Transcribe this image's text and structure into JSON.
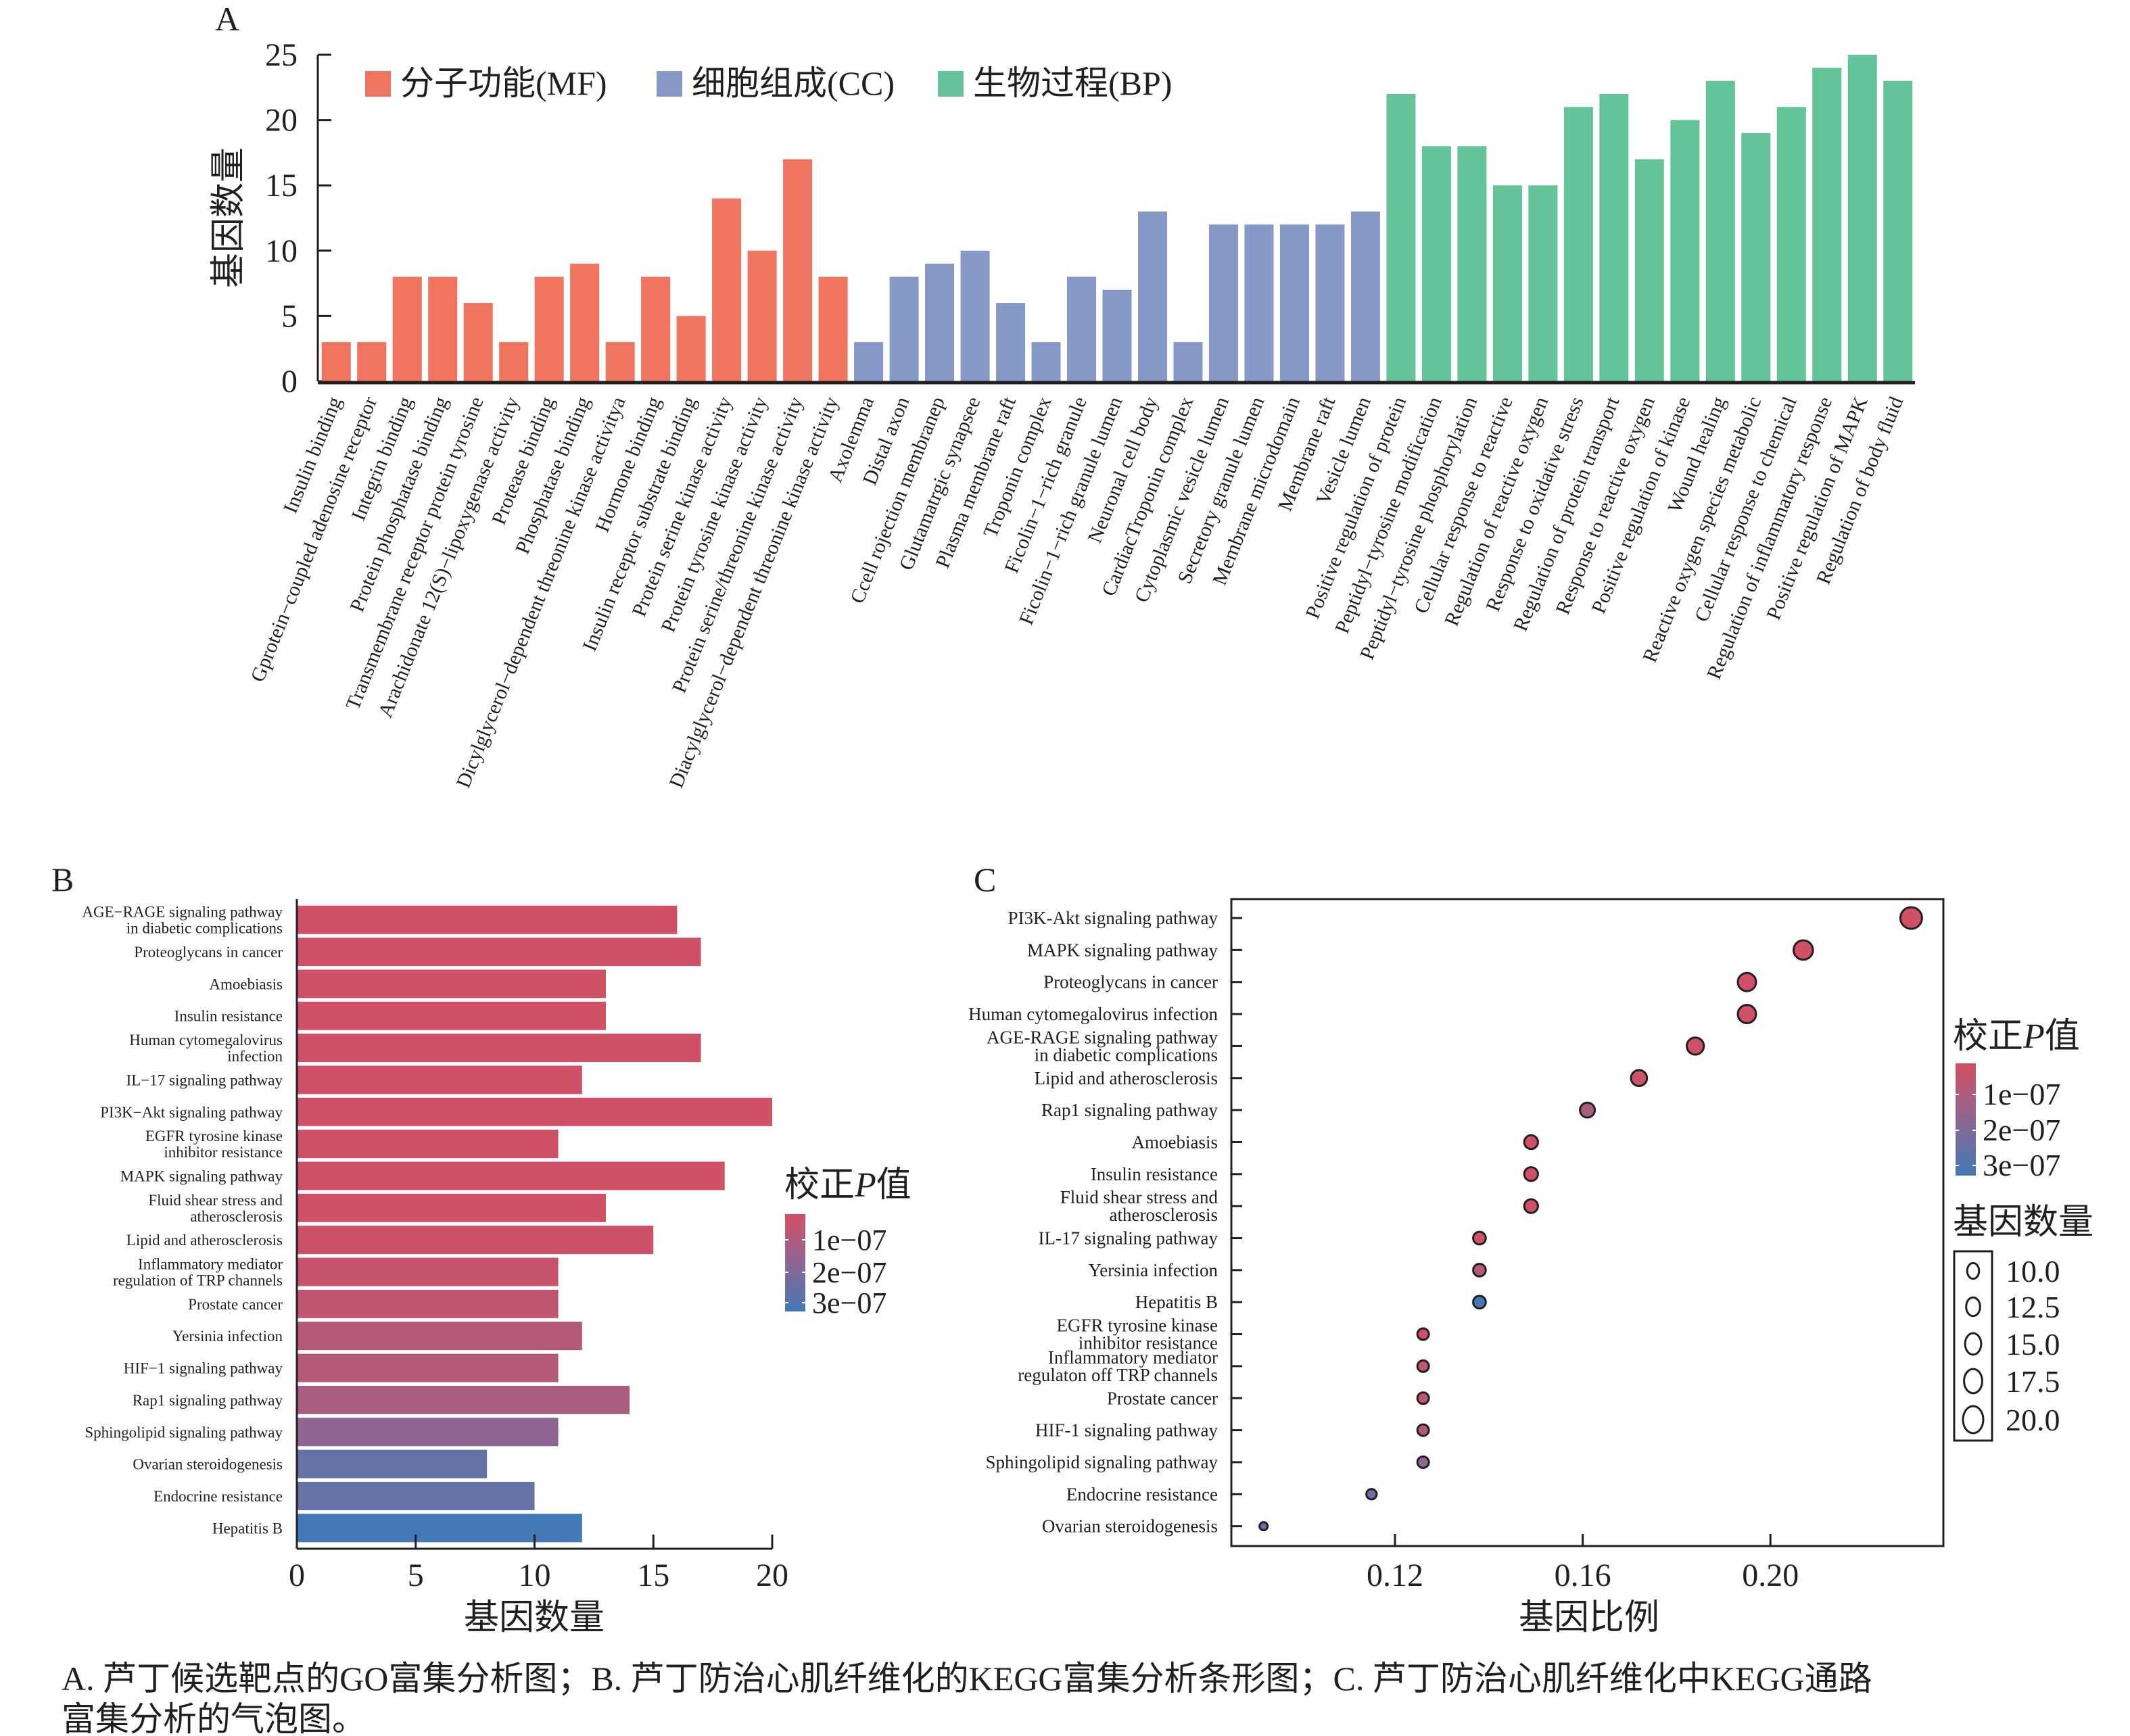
{
  "caption": {
    "line1": "A. 芦丁候选靶点的GO富集分析图；B. 芦丁防治心肌纤维化的KEGG富集分析条形图；C. 芦丁防治心肌纤维化中KEGG通路",
    "line2": "富集分析的气泡图。"
  },
  "chart_data": [
    {
      "panel": "A",
      "type": "bar",
      "ylabel": "基因数量",
      "ylim": [
        0,
        25
      ],
      "yticks": [
        0,
        5,
        10,
        15,
        20,
        25
      ],
      "legend_position": "top-left",
      "series": [
        {
          "name": "分子功能(MF)",
          "color": "#f07560",
          "categories": [
            "Insulin binding",
            "Gprotein−coupled adenosine receptor",
            "Integrin binding",
            "Protein phosphatase binding",
            "Transmembrane receptor protein tyrosine",
            "Arachidonate 12(S)−lipoxygenase activity",
            "Protease binding",
            "Phosphatase binding",
            "Dicylglycerol−dependent threonine kinase activitya",
            "Hormone binding",
            "Insulin receptor substrate binding",
            "Protein serine kinase activity",
            "Protein tyrosine kinase activity",
            "Protein serine/threonine kinase activity",
            "Diacylglycerol−dependent threonine kinase activity"
          ],
          "values": [
            3,
            3,
            8,
            8,
            6,
            3,
            8,
            9,
            3,
            8,
            5,
            14,
            10,
            17,
            8
          ]
        },
        {
          "name": "细胞组成(CC)",
          "color": "#8598c6",
          "categories": [
            "Axolemma",
            "Distal axon",
            "Ccell rojection membranep",
            "Glutamatrgic synapsee",
            "Plasma membrane raft",
            "Troponin complex",
            "Ficolin−1−rich granule",
            "Ficolin−1−rich granule lumen",
            "Neuronal cell body",
            "CardiacTroponin complex",
            "Cytoplasmic vesicle lumen",
            "Secretory granule lumen",
            "Membrane microdomain",
            "Membrane raft",
            "Vesicle lumen"
          ],
          "values": [
            3,
            8,
            9,
            10,
            6,
            3,
            8,
            7,
            13,
            3,
            12,
            12,
            12,
            12,
            13
          ]
        },
        {
          "name": "生物过程(BP)",
          "color": "#65c39a",
          "categories": [
            "Positive regulation of protein",
            "Peptidyl−tyrosine modification",
            "Peptidyl−tyrosine phosphorylation",
            "Cellular response to reactive",
            "Regulation of reactive oxygen",
            "Response to oxidative stress",
            "Regulation of protein transport",
            "Response to reactive oxygen",
            "Positive regulation of kinase",
            "Wound healing",
            "Reactive oxygen species metabolic",
            "Cellular response to chemical",
            "Regulation of inflammatory response",
            "Positive regulation of MAPK",
            "Regulation of body fluid"
          ],
          "values": [
            22,
            18,
            18,
            15,
            15,
            21,
            22,
            17,
            20,
            23,
            19,
            21,
            24,
            25,
            23
          ]
        }
      ]
    },
    {
      "panel": "B",
      "type": "bar",
      "orientation": "horizontal",
      "xlabel": "基因数量",
      "xlim": [
        0,
        20
      ],
      "xticks": [
        0,
        5,
        10,
        15,
        20
      ],
      "color_legend_title": "校正P值",
      "color_legend_ticks": [
        "1e−07",
        "2e−07",
        "3e−07"
      ],
      "color_scale": [
        "#d44f64",
        "#8d6792",
        "#4479b7"
      ],
      "categories": [
        [
          "AGE−RAGE signaling pathway",
          "in diabetic complications"
        ],
        [
          "Proteoglycans in cancer"
        ],
        [
          "Amoebiasis"
        ],
        [
          "Insulin resistance"
        ],
        [
          "Human cytomegalovirus",
          "infection"
        ],
        [
          "IL−17 signaling pathway"
        ],
        [
          "PI3K−Akt signaling pathway"
        ],
        [
          "EGFR tyrosine kinase",
          "inhibitor resistance"
        ],
        [
          "MAPK signaling pathway"
        ],
        [
          "Fluid shear stress and",
          "atherosclerosis"
        ],
        [
          "Lipid and atherosclerosis"
        ],
        [
          "Inflammatory mediator",
          "regulation of TRP channels"
        ],
        [
          "Prostate cancer"
        ],
        [
          "Yersinia infection"
        ],
        [
          "HIF−1 signaling pathway"
        ],
        [
          "Rap1 signaling pathway"
        ],
        [
          "Sphingolipid signaling pathway"
        ],
        [
          "Ovarian steroidogenesis"
        ],
        [
          "Endocrine resistance"
        ],
        [
          "Hepatitis B"
        ]
      ],
      "values": [
        16,
        17,
        13,
        13,
        17,
        12,
        20,
        11,
        18,
        13,
        15,
        11,
        11,
        12,
        11,
        14,
        11,
        8,
        10,
        12
      ],
      "padj": [
        3e-08,
        3e-08,
        3e-08,
        3e-08,
        3e-08,
        3e-08,
        3e-08,
        3e-08,
        3e-08,
        3e-08,
        4e-08,
        5e-08,
        7e-08,
        1e-07,
        1e-07,
        1.3e-07,
        2e-07,
        2.7e-07,
        2.7e-07,
        3.3e-07
      ]
    },
    {
      "panel": "C",
      "type": "scatter",
      "xlabel": "基因比例",
      "xticks": [
        0.12,
        0.16,
        0.2
      ],
      "color_legend_title": "校正P值",
      "color_legend_ticks": [
        "1e−07",
        "2e−07",
        "3e−07"
      ],
      "size_legend_title": "基因数量",
      "size_legend_ticks": [
        "10.0",
        "12.5",
        "15.0",
        "17.5",
        "20.0"
      ],
      "categories": [
        [
          "PI3K-Akt signaling pathway"
        ],
        [
          "MAPK signaling pathway"
        ],
        [
          "Proteoglycans in cancer"
        ],
        [
          "Human cytomegalovirus infection"
        ],
        [
          "AGE-RAGE signaling pathway",
          "in diabetic complications"
        ],
        [
          "Lipid and atherosclerosis"
        ],
        [
          "Rap1 signaling pathway"
        ],
        [
          "Amoebiasis"
        ],
        [
          "Insulin resistance"
        ],
        [
          "Fluid shear stress and",
          "atherosclerosis"
        ],
        [
          "IL-17 signaling pathway"
        ],
        [
          "Yersinia infection"
        ],
        [
          "Hepatitis B"
        ],
        [
          "EGFR tyrosine kinase",
          "inhibitor resistance"
        ],
        [
          "Inflammatory mediator",
          "regulaton off TRP channels"
        ],
        [
          "Prostate cancer"
        ],
        [
          "HIF-1 signaling pathway"
        ],
        [
          "Sphingolipid signaling pathway"
        ],
        [
          "Endocrine resistance"
        ],
        [
          "Ovarian steroidogenesis"
        ]
      ],
      "x": [
        0.23,
        0.207,
        0.195,
        0.195,
        0.184,
        0.172,
        0.161,
        0.149,
        0.149,
        0.149,
        0.138,
        0.138,
        0.138,
        0.126,
        0.126,
        0.126,
        0.126,
        0.126,
        0.115,
        0.092
      ],
      "size": [
        20,
        18,
        17,
        17,
        16,
        15,
        14,
        13,
        13,
        13,
        12,
        12,
        12,
        11,
        11,
        11,
        11,
        11,
        10,
        8
      ],
      "padj": [
        3e-08,
        3e-08,
        3e-08,
        3e-08,
        3e-08,
        4e-08,
        1.3e-07,
        3e-08,
        3e-08,
        3e-08,
        3e-08,
        1e-07,
        3.3e-07,
        3e-08,
        5e-08,
        7e-08,
        1e-07,
        2e-07,
        2.7e-07,
        2.7e-07
      ]
    }
  ]
}
